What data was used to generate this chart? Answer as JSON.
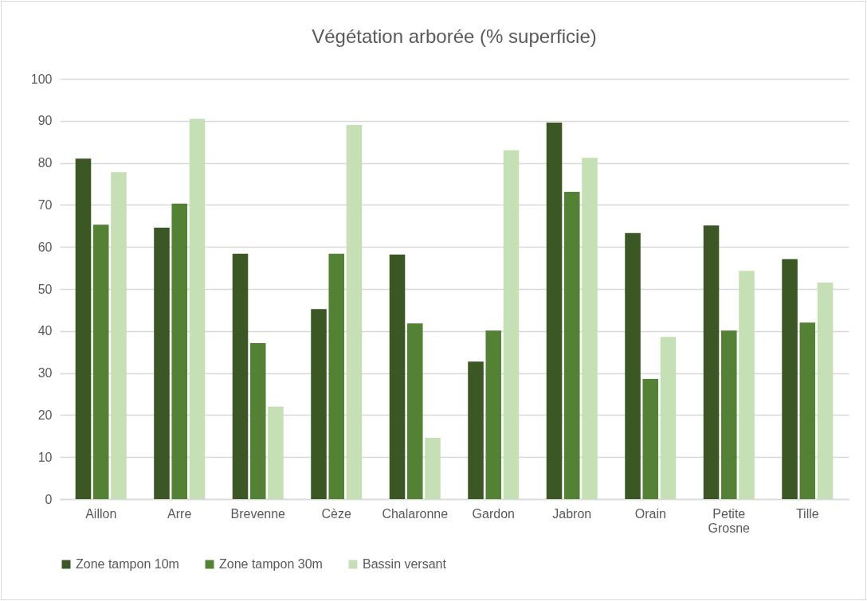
{
  "chart_data": {
    "type": "bar",
    "title": "Végétation arborée (% superficie)",
    "categories": [
      "Aillon",
      "Arre",
      "Brevenne",
      "Cèze",
      "Chalaronne",
      "Gardon",
      "Jabron",
      "Orain",
      "Petite Grosne",
      "Tille"
    ],
    "series": [
      {
        "name": "Zone tampon 10m",
        "color": "#3a5724",
        "values": [
          81.0,
          64.6,
          58.4,
          45.2,
          58.2,
          32.7,
          89.6,
          63.3,
          65.1,
          57.1
        ]
      },
      {
        "name": "Zone tampon 30m",
        "color": "#548235",
        "values": [
          65.3,
          70.3,
          37.1,
          58.4,
          41.8,
          40.1,
          73.1,
          28.6,
          40.1,
          42.0
        ]
      },
      {
        "name": "Bassin versant",
        "color": "#c5e0b4",
        "values": [
          77.8,
          90.5,
          22.0,
          89.0,
          14.6,
          83.0,
          81.2,
          38.6,
          54.3,
          51.5
        ]
      }
    ],
    "ylim": [
      0,
      100
    ],
    "yticks": [
      0,
      10,
      20,
      30,
      40,
      50,
      60,
      70,
      80,
      90,
      100
    ],
    "grid": "y",
    "legend": "bottom"
  }
}
